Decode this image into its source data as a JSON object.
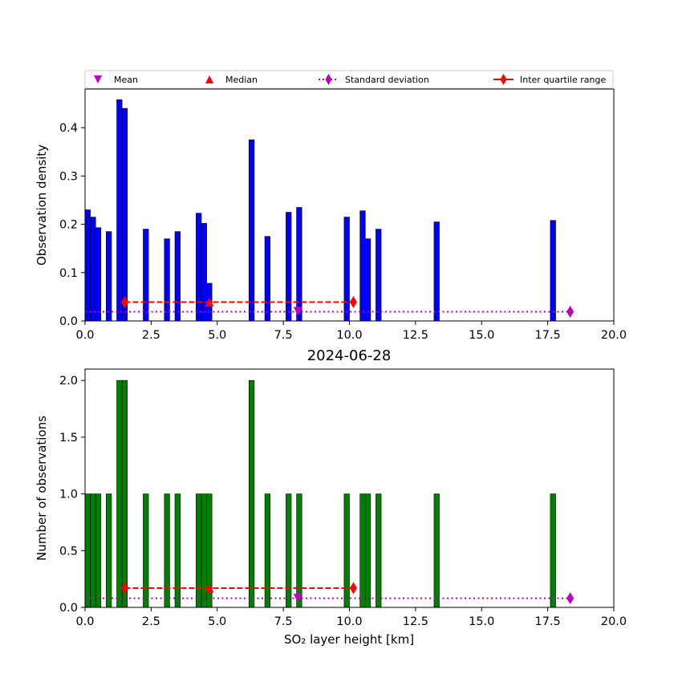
{
  "chart_data": [
    {
      "type": "bar",
      "panel": "top",
      "title": "",
      "xlabel": "",
      "ylabel": "Observation density",
      "xlim": [
        0,
        20
      ],
      "ylim": [
        0,
        0.48
      ],
      "xticks": [
        0.0,
        2.5,
        5.0,
        7.5,
        10.0,
        12.5,
        15.0,
        17.5,
        20.0
      ],
      "xtick_labels": [
        "0.0",
        "2.5",
        "5.0",
        "7.5",
        "10.0",
        "12.5",
        "15.0",
        "17.5",
        "20.0"
      ],
      "yticks": [
        0.0,
        0.1,
        0.2,
        0.3,
        0.4
      ],
      "ytick_labels": [
        "0.0",
        "0.1",
        "0.2",
        "0.3",
        "0.4"
      ],
      "bar_color": "#0000ff",
      "bars": [
        {
          "x": 0.0,
          "width": 0.2,
          "value": 0.23
        },
        {
          "x": 0.2,
          "width": 0.2,
          "value": 0.215
        },
        {
          "x": 0.4,
          "width": 0.2,
          "value": 0.193
        },
        {
          "x": 0.8,
          "width": 0.2,
          "value": 0.185
        },
        {
          "x": 1.2,
          "width": 0.2,
          "value": 0.458
        },
        {
          "x": 1.4,
          "width": 0.2,
          "value": 0.44
        },
        {
          "x": 2.2,
          "width": 0.2,
          "value": 0.19
        },
        {
          "x": 3.0,
          "width": 0.2,
          "value": 0.17
        },
        {
          "x": 3.4,
          "width": 0.2,
          "value": 0.185
        },
        {
          "x": 4.2,
          "width": 0.2,
          "value": 0.223
        },
        {
          "x": 4.4,
          "width": 0.2,
          "value": 0.202
        },
        {
          "x": 4.6,
          "width": 0.2,
          "value": 0.078
        },
        {
          "x": 6.2,
          "width": 0.2,
          "value": 0.375
        },
        {
          "x": 6.8,
          "width": 0.2,
          "value": 0.175
        },
        {
          "x": 7.6,
          "width": 0.2,
          "value": 0.225
        },
        {
          "x": 8.0,
          "width": 0.2,
          "value": 0.235
        },
        {
          "x": 9.8,
          "width": 0.2,
          "value": 0.215
        },
        {
          "x": 10.4,
          "width": 0.2,
          "value": 0.228
        },
        {
          "x": 10.6,
          "width": 0.2,
          "value": 0.17
        },
        {
          "x": 11.0,
          "width": 0.2,
          "value": 0.19
        },
        {
          "x": 13.2,
          "width": 0.2,
          "value": 0.205
        },
        {
          "x": 17.6,
          "width": 0.2,
          "value": 0.208
        }
      ],
      "mean": {
        "x": 8.05,
        "y": 0.02
      },
      "median": {
        "x": 4.7,
        "y": 0.039
      },
      "std_dev": {
        "x0": 0.0,
        "x1": 18.35,
        "y": 0.019
      },
      "iqr": {
        "x0": 1.5,
        "x1": 10.15,
        "y": 0.039
      },
      "legend": {
        "placement": "top",
        "entries": [
          "Mean",
          "Median",
          "Standard deviation",
          "Inter quartile range"
        ]
      }
    },
    {
      "type": "bar",
      "panel": "bottom",
      "title": "2024-06-28",
      "xlabel": "SO₂ layer height [km]",
      "ylabel": "Number of observations",
      "xlim": [
        0,
        20
      ],
      "ylim": [
        0,
        2.1
      ],
      "xticks": [
        0.0,
        2.5,
        5.0,
        7.5,
        10.0,
        12.5,
        15.0,
        17.5,
        20.0
      ],
      "xtick_labels": [
        "0.0",
        "2.5",
        "5.0",
        "7.5",
        "10.0",
        "12.5",
        "15.0",
        "17.5",
        "20.0"
      ],
      "yticks": [
        0.0,
        0.5,
        1.0,
        1.5,
        2.0
      ],
      "ytick_labels": [
        "0.0",
        "0.5",
        "1.0",
        "1.5",
        "2.0"
      ],
      "bar_color": "#008000",
      "bars": [
        {
          "x": 0.0,
          "width": 0.2,
          "value": 1
        },
        {
          "x": 0.2,
          "width": 0.2,
          "value": 1
        },
        {
          "x": 0.4,
          "width": 0.2,
          "value": 1
        },
        {
          "x": 0.8,
          "width": 0.2,
          "value": 1
        },
        {
          "x": 1.2,
          "width": 0.2,
          "value": 2
        },
        {
          "x": 1.4,
          "width": 0.2,
          "value": 2
        },
        {
          "x": 2.2,
          "width": 0.2,
          "value": 1
        },
        {
          "x": 3.0,
          "width": 0.2,
          "value": 1
        },
        {
          "x": 3.4,
          "width": 0.2,
          "value": 1
        },
        {
          "x": 4.2,
          "width": 0.2,
          "value": 1
        },
        {
          "x": 4.4,
          "width": 0.2,
          "value": 1
        },
        {
          "x": 4.6,
          "width": 0.2,
          "value": 1
        },
        {
          "x": 6.2,
          "width": 0.2,
          "value": 2
        },
        {
          "x": 6.8,
          "width": 0.2,
          "value": 1
        },
        {
          "x": 7.6,
          "width": 0.2,
          "value": 1
        },
        {
          "x": 8.0,
          "width": 0.2,
          "value": 1
        },
        {
          "x": 9.8,
          "width": 0.2,
          "value": 1
        },
        {
          "x": 10.4,
          "width": 0.2,
          "value": 1
        },
        {
          "x": 10.6,
          "width": 0.2,
          "value": 1
        },
        {
          "x": 11.0,
          "width": 0.2,
          "value": 1
        },
        {
          "x": 13.2,
          "width": 0.2,
          "value": 1
        },
        {
          "x": 17.6,
          "width": 0.2,
          "value": 1
        }
      ],
      "mean": {
        "x": 8.05,
        "y": 0.08
      },
      "median": {
        "x": 4.7,
        "y": 0.17
      },
      "std_dev": {
        "x0": 0.0,
        "x1": 18.35,
        "y": 0.08
      },
      "iqr": {
        "x0": 1.5,
        "x1": 10.15,
        "y": 0.17
      }
    }
  ],
  "colors": {
    "mean": "#bf00bf",
    "median": "#ff0000",
    "std_dev": "#bf00bf",
    "iqr": "#ff0000"
  }
}
